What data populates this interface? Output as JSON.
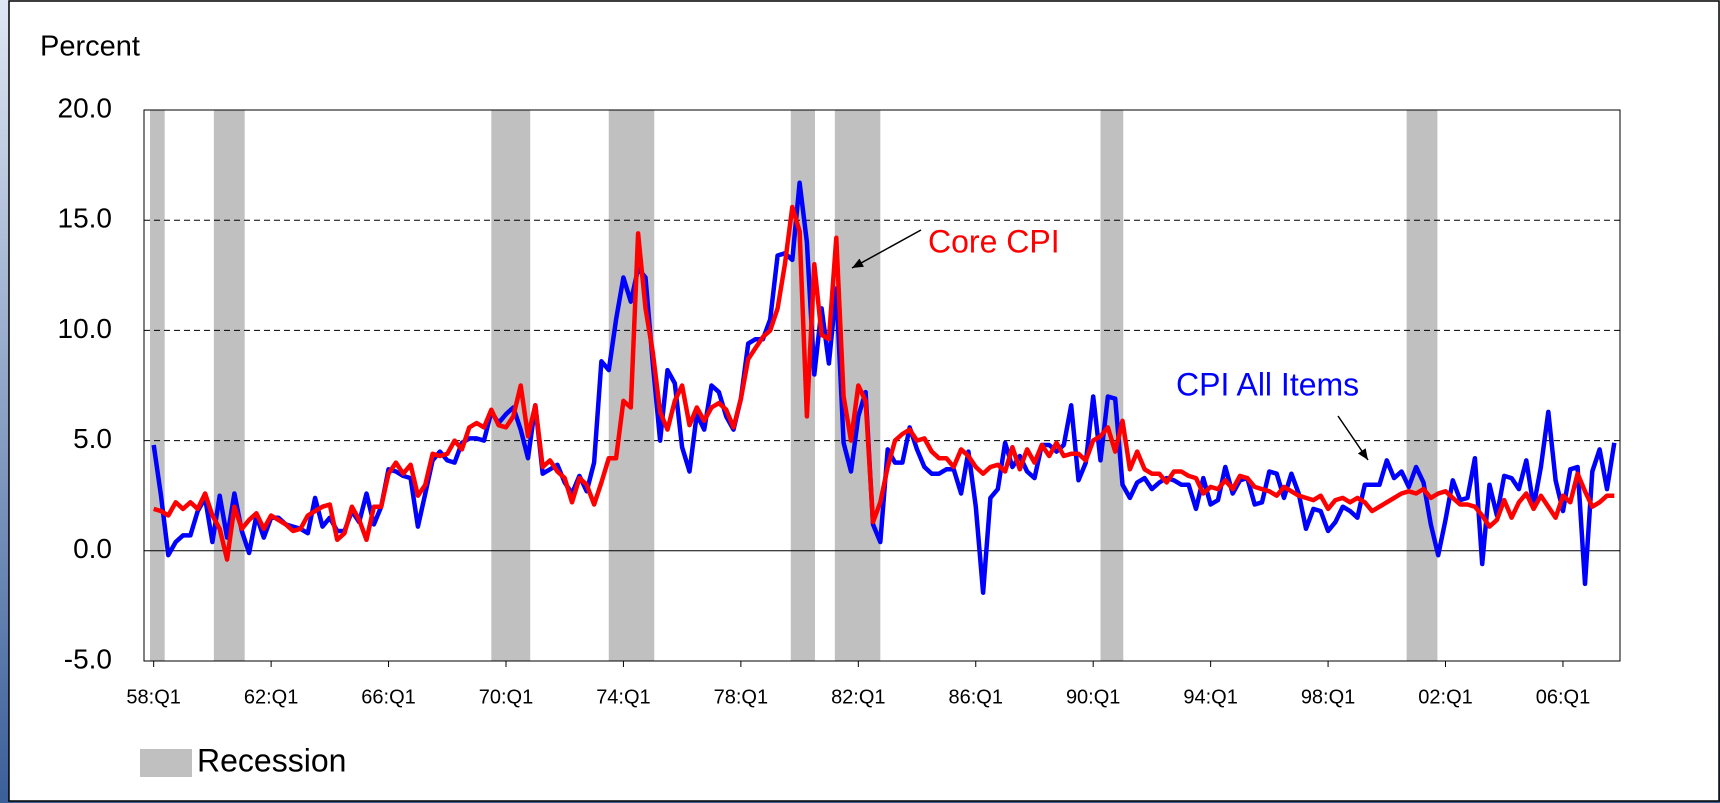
{
  "chart_data": {
    "type": "line",
    "y_axis_label": "Percent",
    "categories": [
      "58:Q1",
      null,
      null,
      null,
      null,
      null,
      null,
      null,
      null,
      null,
      null,
      null,
      null,
      null,
      null,
      null,
      "62:Q1",
      null,
      null,
      null,
      null,
      null,
      null,
      null,
      null,
      null,
      null,
      null,
      null,
      null,
      null,
      null,
      "66:Q1",
      null,
      null,
      null,
      null,
      null,
      null,
      null,
      null,
      null,
      null,
      null,
      null,
      null,
      null,
      null,
      "70:Q1",
      null,
      null,
      null,
      null,
      null,
      null,
      null,
      null,
      null,
      null,
      null,
      null,
      null,
      null,
      null,
      "74:Q1",
      null,
      null,
      null,
      null,
      null,
      null,
      null,
      null,
      null,
      null,
      null,
      null,
      null,
      null,
      null,
      "78:Q1",
      null,
      null,
      null,
      null,
      null,
      null,
      null,
      null,
      null,
      null,
      null,
      null,
      null,
      null,
      null,
      "82:Q1",
      null,
      null,
      null,
      null,
      null,
      null,
      null,
      null,
      null,
      null,
      null,
      null,
      null,
      null,
      null,
      "86:Q1",
      null,
      null,
      null,
      null,
      null,
      null,
      null,
      null,
      null,
      null,
      null,
      null,
      null,
      null,
      null,
      "90:Q1",
      null,
      null,
      null,
      null,
      null,
      null,
      null,
      null,
      null,
      null,
      null,
      null,
      null,
      null,
      null,
      "94:Q1",
      null,
      null,
      null,
      null,
      null,
      null,
      null,
      null,
      null,
      null,
      null,
      null,
      null,
      null,
      null,
      "98:Q1",
      null,
      null,
      null,
      null,
      null,
      null,
      null,
      null,
      null,
      null,
      null,
      null,
      null,
      null,
      null,
      "02:Q1",
      null,
      null,
      null,
      null,
      null,
      null,
      null,
      null,
      null,
      null,
      null,
      null,
      null,
      null,
      null,
      "06:Q1",
      null,
      null,
      null,
      null,
      null,
      null,
      null
    ],
    "series": [
      {
        "name": "CPI All Items",
        "color": "#0000ff",
        "values": [
          4.8,
          2.5,
          -0.2,
          0.4,
          0.7,
          0.7,
          1.8,
          2.4,
          0.4,
          2.5,
          0.6,
          2.6,
          0.9,
          -0.1,
          1.6,
          0.6,
          1.5,
          1.5,
          1.2,
          1.1,
          1.0,
          0.8,
          2.4,
          1.1,
          1.5,
          0.9,
          0.9,
          1.8,
          1.3,
          2.6,
          1.2,
          2.0,
          3.7,
          3.6,
          3.4,
          3.3,
          1.1,
          2.6,
          4.1,
          4.5,
          4.1,
          4.0,
          4.9,
          5.1,
          5.1,
          5.0,
          6.3,
          5.8,
          6.2,
          6.5,
          5.5,
          4.2,
          6.6,
          3.5,
          3.7,
          3.9,
          3.1,
          2.6,
          3.4,
          2.7,
          4.0,
          8.6,
          8.2,
          10.5,
          12.4,
          11.3,
          12.8,
          12.4,
          8.5,
          5.0,
          8.2,
          7.6,
          4.7,
          3.6,
          6.2,
          5.5,
          7.5,
          7.2,
          6.1,
          5.5,
          6.9,
          9.4,
          9.6,
          9.6,
          10.5,
          13.4,
          13.5,
          13.2,
          16.7,
          14.0,
          8.0,
          11.0,
          8.5,
          11.9,
          4.9,
          3.6,
          6.1,
          7.2,
          1.2,
          0.4,
          4.6,
          4.0,
          4.0,
          5.6,
          4.6,
          3.8,
          3.5,
          3.5,
          3.7,
          3.7,
          2.6,
          4.5,
          2.0,
          -1.9,
          2.4,
          2.8,
          4.9,
          3.8,
          4.3,
          3.6,
          3.3,
          4.8,
          4.8,
          4.5,
          4.8,
          6.6,
          3.2,
          4.0,
          7.0,
          4.1,
          7.0,
          6.9,
          3.0,
          2.4,
          3.1,
          3.3,
          2.8,
          3.1,
          3.3,
          3.2,
          3.0,
          3.0,
          1.9,
          3.3,
          2.1,
          2.3,
          3.8,
          2.6,
          3.2,
          3.3,
          2.1,
          2.2,
          3.6,
          3.5,
          2.4,
          3.5,
          2.6,
          1.0,
          1.9,
          1.8,
          0.9,
          1.3,
          2.0,
          1.8,
          1.5,
          3.0,
          3.0,
          3.0,
          4.1,
          3.3,
          3.6,
          2.9,
          3.8,
          3.1,
          1.2,
          -0.2,
          1.4,
          3.2,
          2.3,
          2.4,
          4.2,
          -0.6,
          3.0,
          1.6,
          3.4,
          3.3,
          2.8,
          4.1,
          2.0,
          3.8,
          6.3,
          3.2,
          1.8,
          3.7,
          3.8,
          -1.5,
          3.6,
          4.6,
          2.8,
          4.9
        ]
      },
      {
        "name": "Core CPI",
        "color": "#ff0000",
        "values": [
          1.9,
          1.8,
          1.6,
          2.2,
          1.9,
          2.2,
          1.9,
          2.6,
          1.6,
          1.0,
          -0.4,
          2.0,
          1.0,
          1.4,
          1.7,
          1.0,
          1.6,
          1.4,
          1.2,
          0.9,
          1.0,
          1.6,
          1.8,
          2.0,
          2.1,
          0.5,
          0.8,
          2.0,
          1.4,
          0.5,
          2.0,
          2.0,
          3.5,
          4.0,
          3.5,
          3.9,
          2.5,
          3.0,
          4.4,
          4.3,
          4.4,
          5.0,
          4.6,
          5.6,
          5.8,
          5.6,
          6.4,
          5.7,
          5.6,
          6.1,
          7.5,
          5.2,
          6.6,
          3.8,
          4.1,
          3.6,
          3.3,
          2.2,
          3.3,
          3.0,
          2.1,
          3.1,
          4.2,
          4.2,
          6.8,
          6.5,
          14.4,
          11.0,
          9.0,
          6.3,
          5.5,
          6.8,
          7.5,
          5.7,
          6.5,
          5.9,
          6.5,
          6.7,
          6.4,
          5.6,
          6.9,
          8.7,
          9.2,
          9.7,
          10.0,
          11.0,
          13.0,
          15.6,
          14.5,
          6.1,
          13.0,
          9.8,
          9.6,
          14.2,
          7.0,
          5.0,
          7.5,
          6.8,
          1.3,
          2.2,
          3.8,
          5.0,
          5.3,
          5.5,
          5.0,
          5.1,
          4.5,
          4.2,
          4.2,
          3.8,
          4.6,
          4.3,
          3.8,
          3.5,
          3.8,
          3.9,
          3.6,
          4.7,
          3.7,
          4.6,
          4.0,
          4.8,
          4.3,
          4.9,
          4.3,
          4.4,
          4.4,
          4.1,
          5.0,
          5.2,
          5.6,
          4.5,
          5.9,
          3.7,
          4.5,
          3.7,
          3.5,
          3.5,
          3.1,
          3.6,
          3.6,
          3.4,
          3.3,
          2.6,
          2.9,
          2.8,
          3.2,
          2.8,
          3.4,
          3.3,
          2.9,
          2.8,
          2.7,
          2.5,
          2.9,
          2.7,
          2.5,
          2.4,
          2.3,
          2.5,
          1.9,
          2.3,
          2.4,
          2.2,
          2.4,
          2.2,
          1.8,
          2.0,
          2.2,
          2.4,
          2.6,
          2.7,
          2.6,
          2.8,
          2.4,
          2.6,
          2.7,
          2.4,
          2.1,
          2.1,
          2.0,
          1.6,
          1.1,
          1.4,
          2.3,
          1.5,
          2.2,
          2.6,
          1.9,
          2.5,
          2.0,
          1.5,
          2.5,
          2.2,
          3.5,
          2.7,
          2.0,
          2.2,
          2.5,
          2.5
        ]
      }
    ],
    "recession": {
      "name": "Recession",
      "color": "#c0c0c0",
      "spans": [
        [
          -0.5,
          1.5
        ],
        [
          8.2,
          12.4
        ],
        [
          46,
          51.3
        ],
        [
          62,
          68.2
        ],
        [
          86.8,
          90.1
        ],
        [
          92.8,
          99
        ],
        [
          129,
          132.1
        ],
        [
          170.7,
          174.9
        ]
      ]
    },
    "annotations": [
      {
        "text": "Core CPI",
        "color": "#ff0000"
      },
      {
        "text": "CPI All Items",
        "color": "#0000ff"
      }
    ],
    "ylim": [
      -5,
      20
    ],
    "yticks": [
      {
        "value": -5,
        "label": "-5.0"
      },
      {
        "value": 0,
        "label": "0.0"
      },
      {
        "value": 5,
        "label": "5.0"
      },
      {
        "value": 10,
        "label": "10.0"
      },
      {
        "value": 15,
        "label": "15.0"
      },
      {
        "value": 20,
        "label": "20.0"
      }
    ],
    "grid": true
  }
}
